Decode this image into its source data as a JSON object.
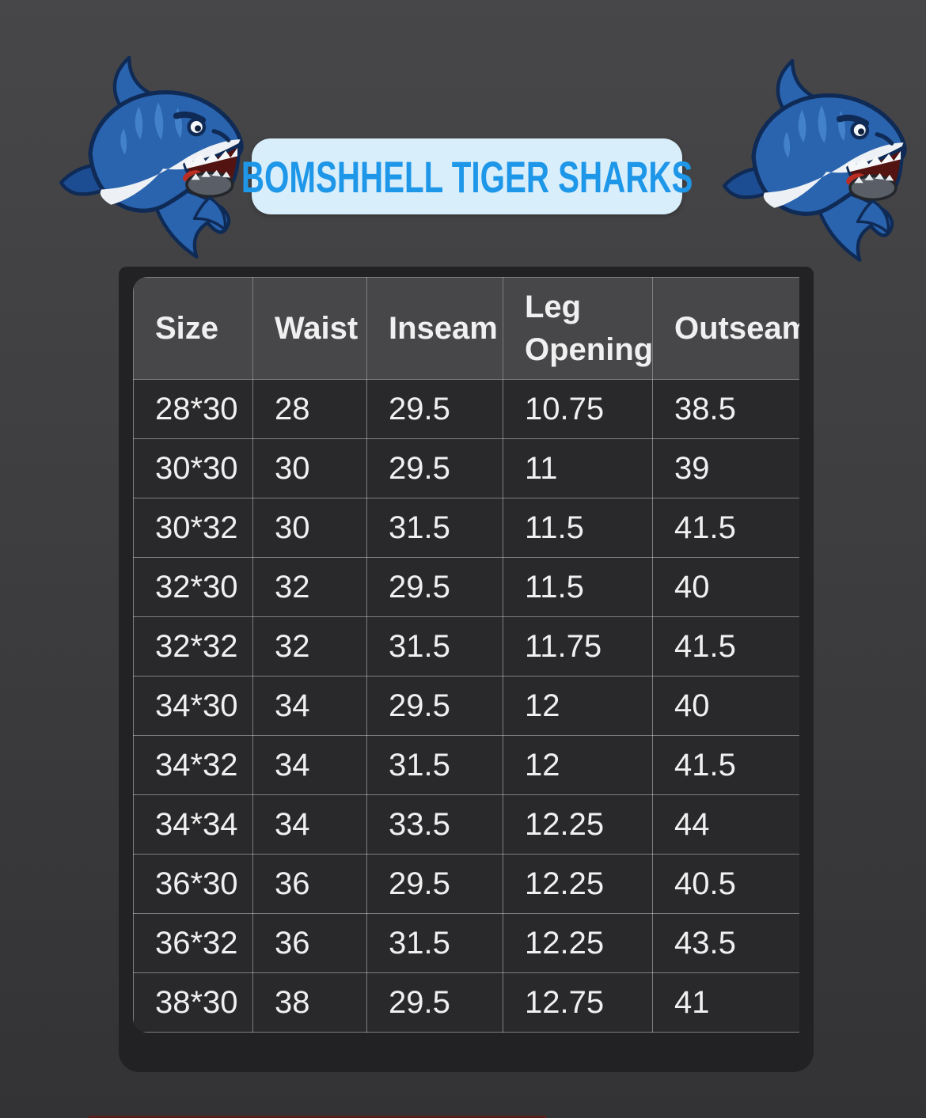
{
  "title_badge": {
    "label": "BOMSHHELL TIGER SHARKS"
  },
  "mascots": {
    "left": "shark-mascot",
    "right": "shark-mascot"
  },
  "chart_data": {
    "type": "table",
    "title": "BOMSHHELL TIGER SHARKS",
    "columns": [
      "Size",
      "Waist",
      "Inseam",
      "Leg Opening",
      "Outseam"
    ],
    "rows": [
      [
        "28*30",
        "28",
        "29.5",
        "10.75",
        "38.5"
      ],
      [
        "30*30",
        "30",
        "29.5",
        "11",
        "39"
      ],
      [
        "30*32",
        "30",
        "31.5",
        "11.5",
        "41.5"
      ],
      [
        "32*30",
        "32",
        "29.5",
        "11.5",
        "40"
      ],
      [
        "32*32",
        "32",
        "31.5",
        "11.75",
        "41.5"
      ],
      [
        "34*30",
        "34",
        "29.5",
        "12",
        "40"
      ],
      [
        "34*32",
        "34",
        "31.5",
        "12",
        "41.5"
      ],
      [
        "34*34",
        "34",
        "33.5",
        "12.25",
        "44"
      ],
      [
        "36*30",
        "36",
        "29.5",
        "12.25",
        "40.5"
      ],
      [
        "36*32",
        "36",
        "31.5",
        "12.25",
        "43.5"
      ],
      [
        "38*30",
        "38",
        "29.5",
        "12.75",
        "41"
      ]
    ]
  },
  "colors": {
    "background_top": "#474749",
    "background_bottom": "#333335",
    "panel": "#222224",
    "header_cell": "#47474a",
    "data_cell": "#29292b",
    "grid_line": "#aeaeb2",
    "cell_text": "#f0f0f1",
    "badge_background": "#d9eefb",
    "badge_text": "#1f97e9",
    "shark_blue": "#2a63ae",
    "shark_outline": "#0f2a55",
    "shark_belly": "#edf1f5"
  }
}
